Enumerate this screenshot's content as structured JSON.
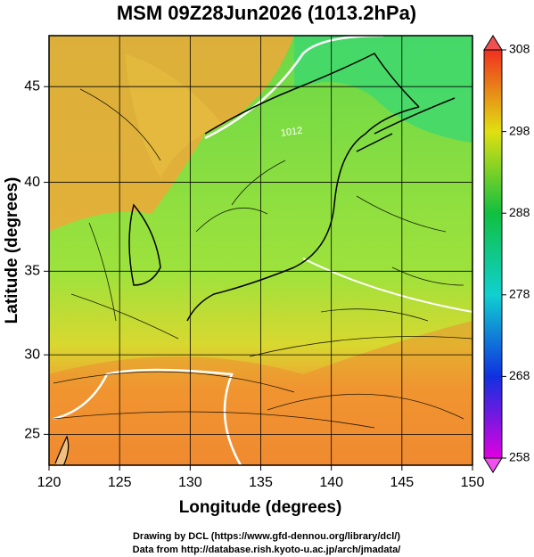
{
  "chart_data": {
    "type": "map",
    "title": "MSM 09Z28Jun2026 (1013.2hPa)",
    "xlabel": "Longitude (degrees)",
    "ylabel": "Latitude  (degrees)",
    "xlim": [
      120,
      150
    ],
    "xticks": [
      120,
      125,
      130,
      135,
      140,
      145,
      150
    ],
    "ylim": [
      23,
      47.5
    ],
    "yticks": [
      25,
      30,
      35,
      40,
      45
    ],
    "grid": true,
    "colorbar": {
      "lim": [
        258,
        308
      ],
      "ticks": [
        258,
        268,
        278,
        288,
        298,
        308
      ]
    },
    "annotations": [
      "1012"
    ],
    "footer": [
      "Drawing by DCL (https://www.gfd-dennou.org/library/dcl/)",
      "Data from http://database.rish.kyoto-u.ac.jp/arch/jmadata/"
    ]
  }
}
